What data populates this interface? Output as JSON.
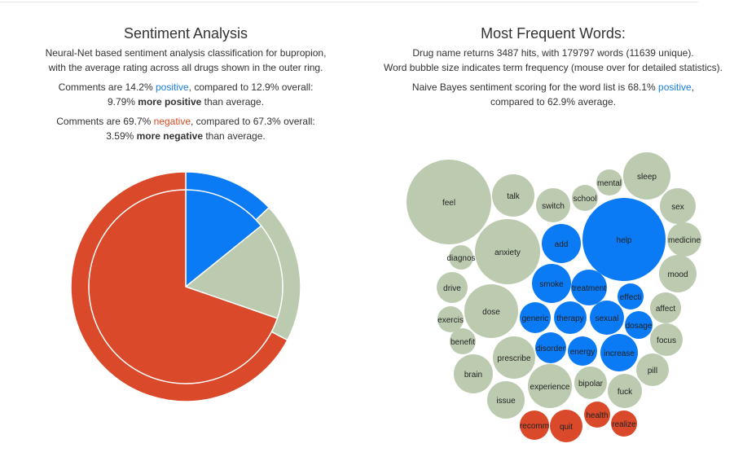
{
  "left": {
    "title": "Sentiment Analysis",
    "intro_line1": "Neural-Net based sentiment analysis classification for bupropion,",
    "intro_line2": "with the average rating across all drugs shown in the outer ring.",
    "positive": {
      "prefix": "Comments are 14.2% ",
      "word": "positive",
      "suffix": ", compared to 12.9% overall:",
      "line2_pre": "9.79% ",
      "line2_bold": "more positive",
      "line2_post": " than average."
    },
    "negative": {
      "prefix": "Comments are 69.7% ",
      "word": "negative",
      "suffix": ", compared to 67.3% overall:",
      "line2_pre": "3.59% ",
      "line2_bold": "more negative",
      "line2_post": " than average."
    }
  },
  "right": {
    "title": "Most Frequent Words:",
    "line1": "Drug name returns 3487 hits, with 179797 words (11639 unique).",
    "line2": "Word bubble size indicates term frequency (mouse over for detailed statistics).",
    "nb_prefix": "Naive Bayes sentiment scoring for the word list is 68.1% ",
    "nb_word": "positive",
    "nb_suffix": ",",
    "nb_line2": "compared to 62.9% average."
  },
  "colors": {
    "positive": "#0a7af5",
    "negative": "#d9492a",
    "neutral": "#bccbb0"
  },
  "chart_data": [
    {
      "type": "pie",
      "series": [
        {
          "values": [
            14.2,
            16.1,
            69.7
          ]
        },
        {
          "values": [
            12.9,
            19.8,
            67.3
          ]
        }
      ],
      "categories": [
        "positive",
        "neutral",
        "negative"
      ]
    }
  ],
  "bubbles": [
    {
      "word": "feel",
      "sentiment": "neutral"
    },
    {
      "word": "talk",
      "sentiment": "neutral"
    },
    {
      "word": "switch",
      "sentiment": "neutral"
    },
    {
      "word": "school",
      "sentiment": "neutral"
    },
    {
      "word": "mental",
      "sentiment": "neutral"
    },
    {
      "word": "sleep",
      "sentiment": "neutral"
    },
    {
      "word": "help",
      "sentiment": "positive"
    },
    {
      "word": "sex",
      "sentiment": "neutral"
    },
    {
      "word": "anxiety",
      "sentiment": "neutral"
    },
    {
      "word": "add",
      "sentiment": "positive"
    },
    {
      "word": "medicine",
      "sentiment": "neutral"
    },
    {
      "word": "diagnos",
      "sentiment": "neutral"
    },
    {
      "word": "mood",
      "sentiment": "neutral"
    },
    {
      "word": "smoke",
      "sentiment": "positive"
    },
    {
      "word": "treatment",
      "sentiment": "positive"
    },
    {
      "word": "drive",
      "sentiment": "neutral"
    },
    {
      "word": "effecti",
      "sentiment": "positive"
    },
    {
      "word": "dose",
      "sentiment": "neutral"
    },
    {
      "word": "affect",
      "sentiment": "neutral"
    },
    {
      "word": "exercis",
      "sentiment": "neutral"
    },
    {
      "word": "generic",
      "sentiment": "positive"
    },
    {
      "word": "therapy",
      "sentiment": "positive"
    },
    {
      "word": "sexual",
      "sentiment": "positive"
    },
    {
      "word": "dosage",
      "sentiment": "positive"
    },
    {
      "word": "focus",
      "sentiment": "neutral"
    },
    {
      "word": "benefit",
      "sentiment": "neutral"
    },
    {
      "word": "disorder",
      "sentiment": "positive"
    },
    {
      "word": "energy",
      "sentiment": "positive"
    },
    {
      "word": "increase",
      "sentiment": "positive"
    },
    {
      "word": "prescribe",
      "sentiment": "neutral"
    },
    {
      "word": "pill",
      "sentiment": "neutral"
    },
    {
      "word": "brain",
      "sentiment": "neutral"
    },
    {
      "word": "experience",
      "sentiment": "neutral"
    },
    {
      "word": "bipolar",
      "sentiment": "neutral"
    },
    {
      "word": "fuck",
      "sentiment": "neutral"
    },
    {
      "word": "issue",
      "sentiment": "neutral"
    },
    {
      "word": "health",
      "sentiment": "negative"
    },
    {
      "word": "recomm",
      "sentiment": "negative"
    },
    {
      "word": "quit",
      "sentiment": "negative"
    },
    {
      "word": "realize",
      "sentiment": "negative"
    }
  ]
}
